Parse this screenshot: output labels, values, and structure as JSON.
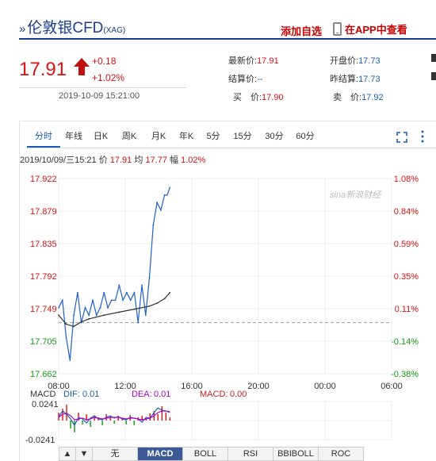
{
  "header": {
    "chevron": "»",
    "title": "伦敦银CFD",
    "subtitle": "(XAG)",
    "add_favorite": "添加自选",
    "view_in_app": "在APP中查看"
  },
  "quote": {
    "price": "17.91",
    "change": "+0.18",
    "change_pct": "+1.02%",
    "timestamp": "2019-10-09 15:21:00",
    "stats": {
      "latest_label": "最新价:",
      "latest_value": "17.91",
      "settle_label": "结算价:",
      "settle_value": "--",
      "bid_label": "买　价:",
      "bid_value": "17.90",
      "open_label": "开盘价:",
      "open_value": "17.73",
      "prev_settle_label": "昨结算:",
      "prev_settle_value": "17.73",
      "ask_label": "卖　价:",
      "ask_value": "17.92"
    }
  },
  "tabs": [
    "分时",
    "年线",
    "日K",
    "周K",
    "月K",
    "年K",
    "5分",
    "15分",
    "30分",
    "60分"
  ],
  "active_tab": "分时",
  "info_bar": {
    "datetime": "2019/10/09/三15:21",
    "price_label": "价",
    "price_value": "17.91",
    "avg_label": "均",
    "avg_value": "17.77",
    "amp_label": "幅",
    "amp_value": "1.02%"
  },
  "watermark": "sina新浪财经",
  "colors": {
    "up": "#dd1111",
    "down": "#119911",
    "brand": "#1a3d8f",
    "accent": "#1a5fb4"
  },
  "chart_data": {
    "type": "line",
    "y_left_ticks": [
      "17.922",
      "17.879",
      "17.835",
      "17.792",
      "17.749",
      "17.705",
      "17.662"
    ],
    "y_right_ticks": [
      "1.08%",
      "0.84%",
      "0.59%",
      "0.35%",
      "0.11%",
      "-0.14%",
      "-0.38%"
    ],
    "x_ticks": [
      "08:00",
      "12:00",
      "16:00",
      "20:00",
      "00:00",
      "06:00"
    ],
    "ylim": [
      17.662,
      17.922
    ],
    "prev_settle": 17.73,
    "series": [
      {
        "name": "价",
        "x": [
          "08:00",
          "08:15",
          "08:30",
          "08:45",
          "09:00",
          "09:15",
          "09:30",
          "09:45",
          "10:00",
          "10:15",
          "10:30",
          "10:45",
          "11:00",
          "11:15",
          "11:30",
          "11:45",
          "12:00",
          "12:15",
          "12:30",
          "12:45",
          "13:00",
          "13:15",
          "13:30",
          "13:45",
          "14:00",
          "14:15",
          "14:30",
          "14:45",
          "15:00",
          "15:10",
          "15:21"
        ],
        "values": [
          17.75,
          17.76,
          17.71,
          17.68,
          17.74,
          17.77,
          17.73,
          17.75,
          17.74,
          17.76,
          17.74,
          17.75,
          17.77,
          17.75,
          17.76,
          17.76,
          17.78,
          17.76,
          17.77,
          17.76,
          17.77,
          17.73,
          17.78,
          17.74,
          17.79,
          17.86,
          17.89,
          17.88,
          17.9,
          17.9,
          17.91
        ]
      },
      {
        "name": "均",
        "x": [
          "08:00",
          "08:30",
          "09:00",
          "09:30",
          "10:00",
          "11:00",
          "12:00",
          "13:00",
          "14:00",
          "14:30",
          "15:00",
          "15:21"
        ],
        "values": [
          17.74,
          17.728,
          17.725,
          17.731,
          17.735,
          17.74,
          17.744,
          17.748,
          17.752,
          17.756,
          17.762,
          17.77
        ]
      }
    ]
  },
  "macd": {
    "label": "MACD",
    "dif_label": "DIF:",
    "dif_value": "0.01",
    "dea_label": "DEA:",
    "dea_value": "0.01",
    "macd_label": "MACD:",
    "macd_value": "0.00",
    "y_top": "0.0241",
    "y_bottom": "-0.0241",
    "histogram": [
      0.01,
      0.015,
      0.02,
      -0.01,
      -0.015,
      0.01,
      -0.005,
      0.008,
      -0.008,
      0.006,
      0.004,
      -0.006,
      0.008,
      0.005,
      -0.004,
      0.006,
      0.003,
      -0.005,
      0.007,
      -0.006,
      0.004,
      0.006,
      0.003,
      0.009,
      0.012,
      0.008,
      0.018,
      0.01,
      0.004
    ],
    "dif": [
      0.005,
      0.012,
      0.008,
      0.002,
      -0.006,
      0.004,
      0.002,
      -0.003,
      0.003,
      0.006,
      0.002,
      0.001,
      0.004,
      0.006,
      0.003,
      0.005,
      0.002,
      0.001,
      0.004,
      0.003,
      0.002,
      -0.002,
      0.004,
      0.003,
      0.01,
      0.016,
      0.013,
      0.012,
      0.01
    ],
    "dea": [
      0.004,
      0.008,
      0.009,
      0.006,
      0.001,
      0.002,
      0.003,
      0.001,
      0.002,
      0.004,
      0.003,
      0.002,
      0.003,
      0.004,
      0.004,
      0.004,
      0.003,
      0.002,
      0.003,
      0.003,
      0.002,
      0.001,
      0.002,
      0.003,
      0.006,
      0.01,
      0.012,
      0.012,
      0.011
    ]
  },
  "indicator_buttons": [
    "▲",
    "▼",
    "无",
    "MACD",
    "BOLL",
    "RSI",
    "BBIBOLL",
    "ROC"
  ],
  "active_indicator": "MACD"
}
